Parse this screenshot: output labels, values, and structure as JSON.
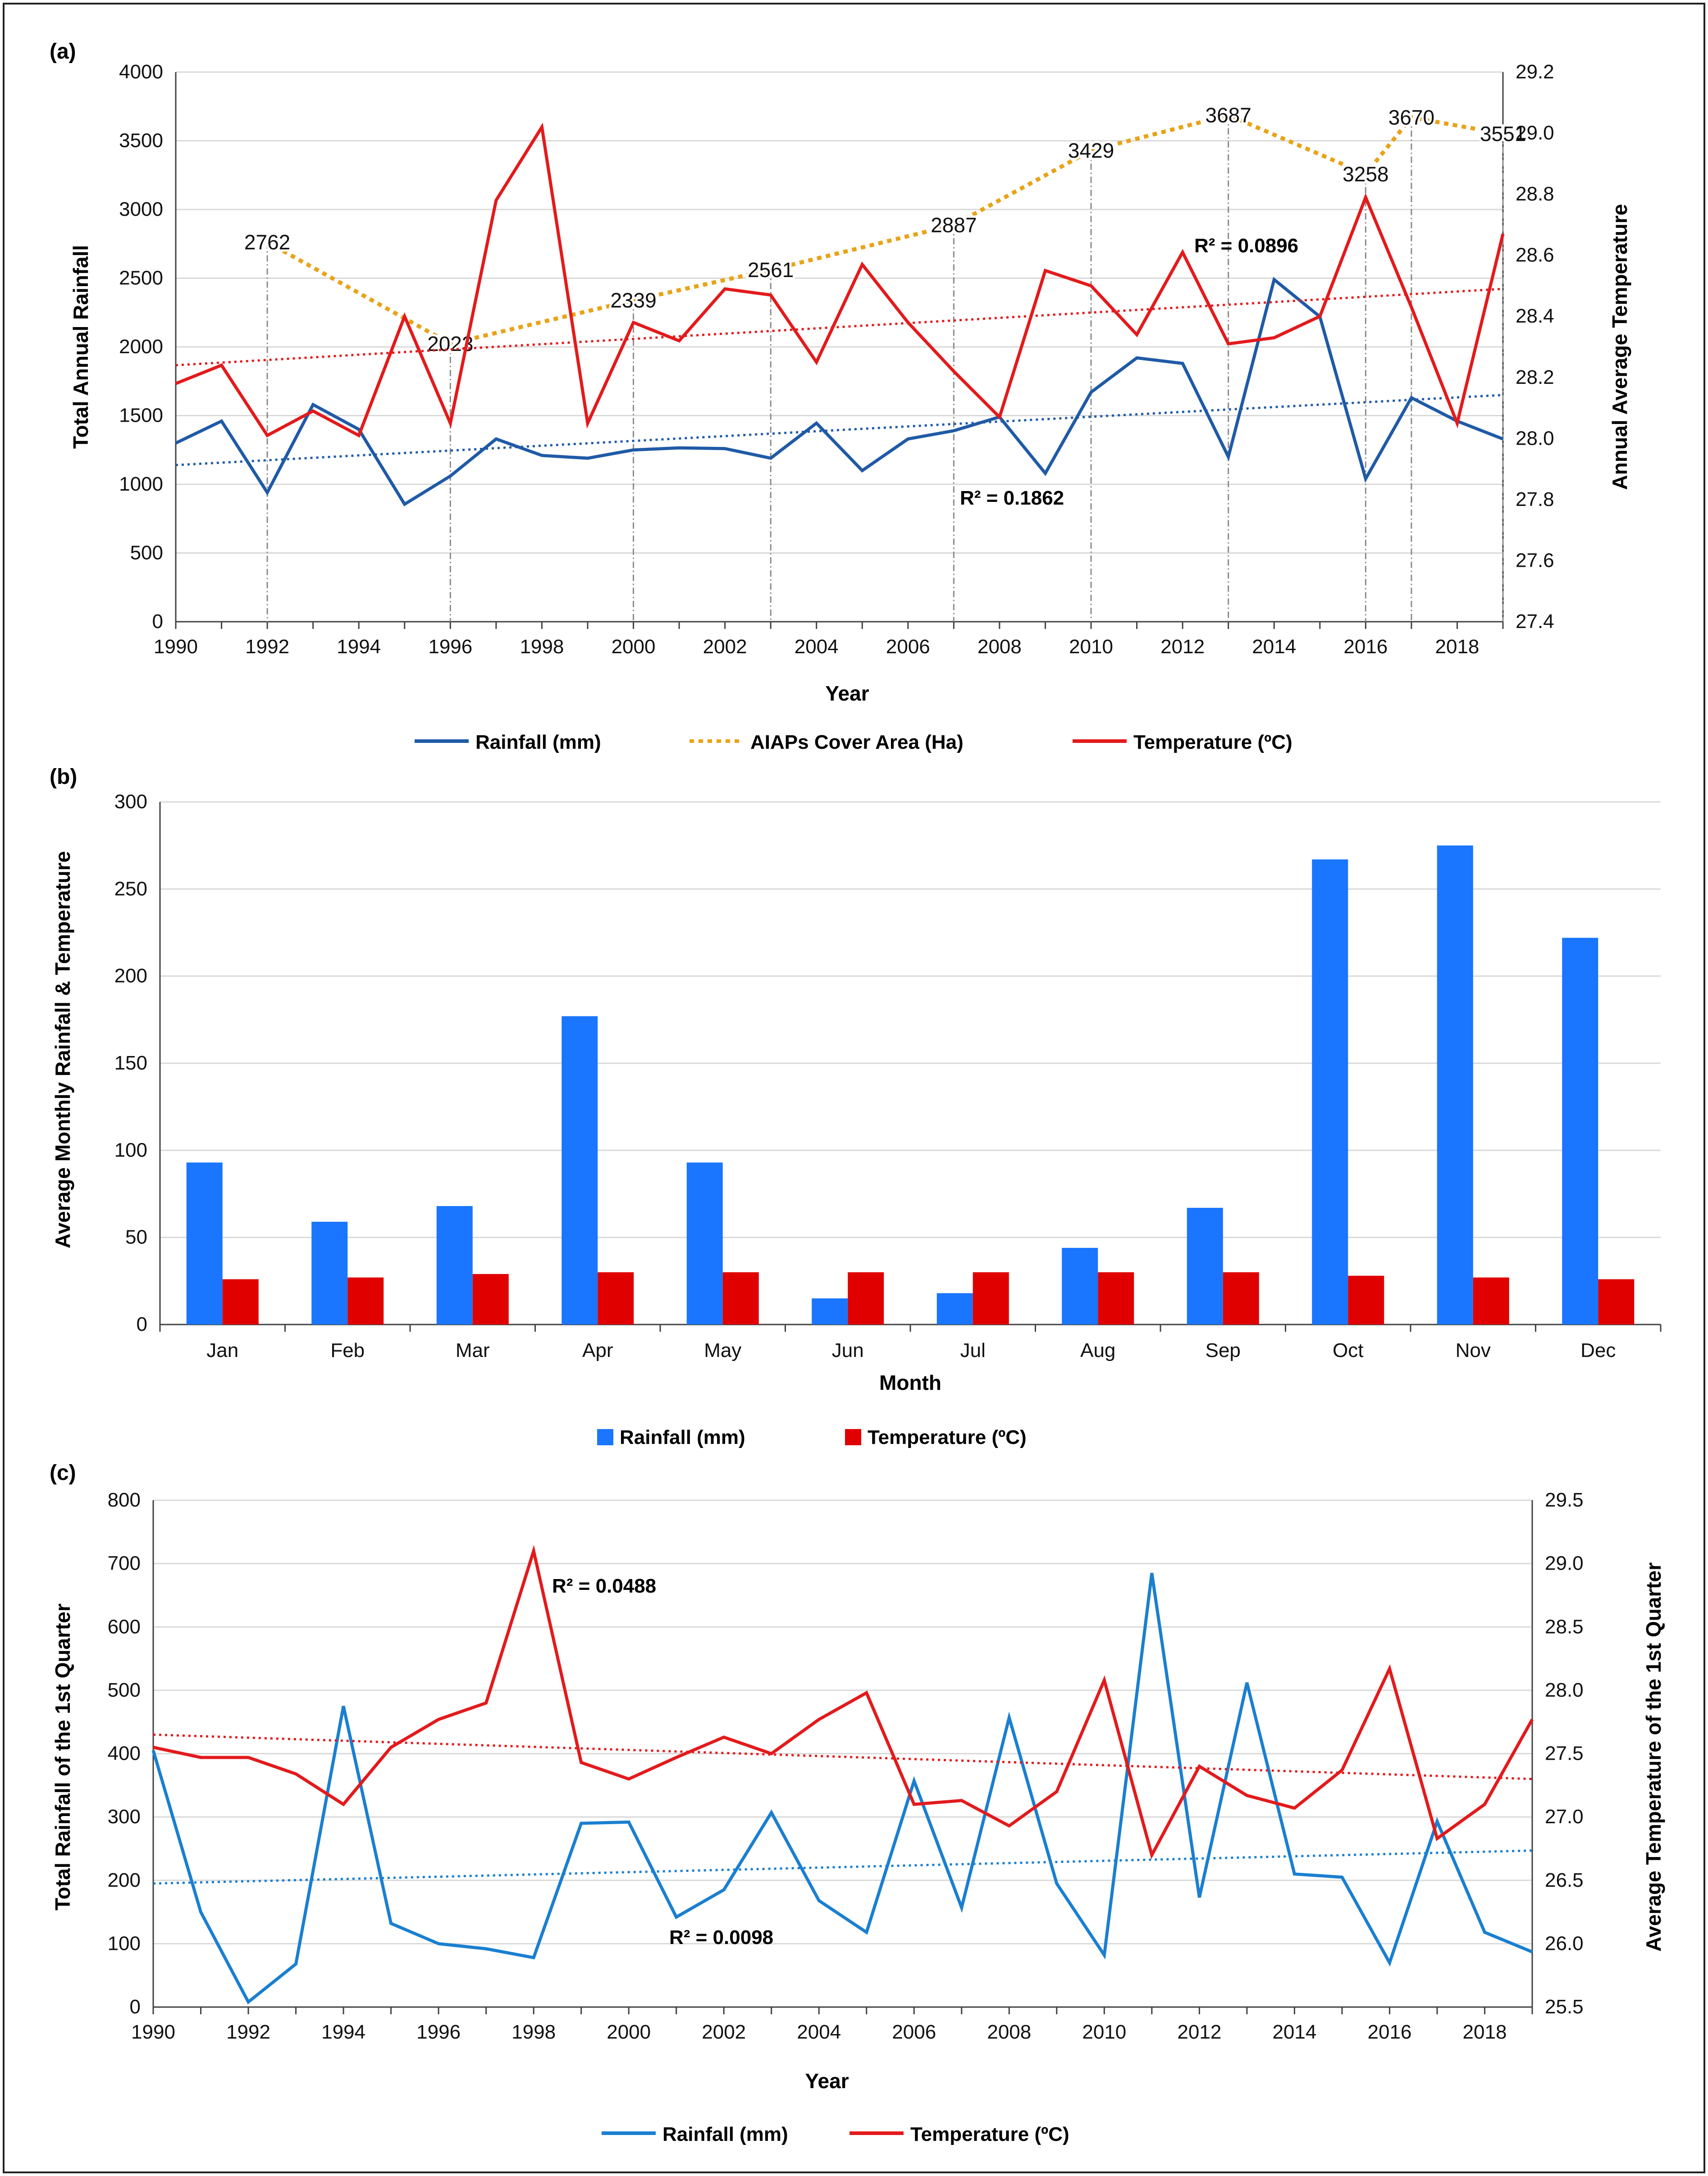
{
  "colors": {
    "rainfall_a": "#1f5aa6",
    "aiap": "#e8a317",
    "temperature": "#e31a1c",
    "rain_bar": "#1a75ff",
    "temp_bar": "#e00000",
    "rainfall_c": "#1a7fd0",
    "grid": "#d9d9d9",
    "axis": "#404040"
  },
  "chart_data": [
    {
      "panel": "(a)",
      "type": "line",
      "xlabel": "Year",
      "ylabel": "Total Annual Rainfall",
      "y2label": "Annual Average Temperature",
      "xlim": [
        1990,
        2019
      ],
      "ylim": [
        0,
        4000
      ],
      "y2lim": [
        27.4,
        29.2
      ],
      "xticks": [
        "1990",
        "1992",
        "1994",
        "1996",
        "1998",
        "2000",
        "2002",
        "2004",
        "2006",
        "2008",
        "2010",
        "2012",
        "2014",
        "2016",
        "2018"
      ],
      "yticks": [
        "0",
        "500",
        "1000",
        "1500",
        "2000",
        "2500",
        "3000",
        "3500",
        "4000"
      ],
      "y2ticks": [
        "27.4",
        "27.6",
        "27.8",
        "28.0",
        "28.2",
        "28.4",
        "28.6",
        "28.8",
        "29.0",
        "29.2"
      ],
      "x": [
        1990,
        1991,
        1992,
        1993,
        1994,
        1995,
        1996,
        1997,
        1998,
        1999,
        2000,
        2001,
        2002,
        2003,
        2004,
        2005,
        2006,
        2007,
        2008,
        2009,
        2010,
        2011,
        2012,
        2013,
        2014,
        2015,
        2016,
        2017,
        2018,
        2019
      ],
      "series": [
        {
          "name": "Rainfall (mm)",
          "axis": "left",
          "style": "solid",
          "values": [
            1300,
            1460,
            940,
            1580,
            1400,
            855,
            1060,
            1330,
            1210,
            1190,
            1250,
            1265,
            1260,
            1190,
            1445,
            1100,
            1330,
            1390,
            1490,
            1080,
            1670,
            1920,
            1880,
            1200,
            2490,
            2220,
            1040,
            1630,
            1460,
            1330
          ],
          "trend": [
            1140,
            1650
          ],
          "r2": "R² = 0.1862"
        },
        {
          "name": "AIAPs Cover Area (Ha)",
          "axis": "left",
          "style": "dotted",
          "points": [
            [
              1992,
              2762
            ],
            [
              1996,
              2023
            ],
            [
              2000,
              2339
            ],
            [
              2003,
              2561
            ],
            [
              2007,
              2887
            ],
            [
              2010,
              3429
            ],
            [
              2013,
              3687
            ],
            [
              2016,
              3258
            ],
            [
              2017,
              3670
            ],
            [
              2019,
              3551
            ]
          ],
          "labels": [
            "2762",
            "2023",
            "2339",
            "2561",
            "2887",
            "3429",
            "3687",
            "3258",
            "3670",
            "3551"
          ]
        },
        {
          "name": "Temperature (ºC)",
          "axis": "right",
          "style": "solid",
          "values": [
            28.18,
            28.24,
            28.01,
            28.09,
            28.01,
            28.4,
            28.05,
            28.78,
            29.02,
            28.05,
            28.38,
            28.32,
            28.49,
            28.47,
            28.25,
            28.57,
            28.38,
            28.22,
            28.07,
            28.55,
            28.5,
            28.34,
            28.61,
            28.31,
            28.33,
            28.4,
            28.79,
            28.43,
            28.05,
            28.67
          ],
          "trend": [
            28.24,
            28.49
          ],
          "r2": "R² = 0.0896"
        }
      ],
      "legend": [
        "Rainfall (mm)",
        "AIAPs Cover Area (Ha)",
        "Temperature (ºC)"
      ],
      "legend_position": "bottom"
    },
    {
      "panel": "(b)",
      "type": "bar",
      "xlabel": "Month",
      "ylabel": "Average Monthly Rainfall & Temperature",
      "ylim": [
        0,
        300
      ],
      "yticks": [
        "0",
        "50",
        "100",
        "150",
        "200",
        "250",
        "300"
      ],
      "categories": [
        "Jan",
        "Feb",
        "Mar",
        "Apr",
        "May",
        "Jun",
        "Jul",
        "Aug",
        "Sep",
        "Oct",
        "Nov",
        "Dec"
      ],
      "series": [
        {
          "name": "Rainfall (mm)",
          "values": [
            93,
            59,
            68,
            177,
            93,
            15,
            18,
            44,
            67,
            267,
            275,
            222
          ]
        },
        {
          "name": "Temperature (ºC)",
          "values": [
            26,
            27,
            29,
            30,
            30,
            30,
            30,
            30,
            30,
            28,
            27,
            26
          ]
        }
      ],
      "legend": [
        "Rainfall (mm)",
        "Temperature (ºC)"
      ],
      "legend_position": "bottom"
    },
    {
      "panel": "(c)",
      "type": "line",
      "xlabel": "Year",
      "ylabel": "Total Rainfall of the 1st Quarter",
      "y2label": "Average Temperature of the 1st Quarter",
      "xlim": [
        1990,
        2019
      ],
      "ylim": [
        0,
        800
      ],
      "y2lim": [
        25.5,
        29.5
      ],
      "xticks": [
        "1990",
        "1992",
        "1994",
        "1996",
        "1998",
        "2000",
        "2002",
        "2004",
        "2006",
        "2008",
        "2010",
        "2012",
        "2014",
        "2016",
        "2018"
      ],
      "yticks": [
        "0",
        "100",
        "200",
        "300",
        "400",
        "500",
        "600",
        "700",
        "800"
      ],
      "y2ticks": [
        "25.5",
        "26.0",
        "26.5",
        "27.0",
        "27.5",
        "28.0",
        "28.5",
        "29.0",
        "29.5"
      ],
      "x": [
        1990,
        1991,
        1992,
        1993,
        1994,
        1995,
        1996,
        1997,
        1998,
        1999,
        2000,
        2001,
        2002,
        2003,
        2004,
        2005,
        2006,
        2007,
        2008,
        2009,
        2010,
        2011,
        2012,
        2013,
        2014,
        2015,
        2016,
        2017,
        2018,
        2019
      ],
      "series": [
        {
          "name": "Rainfall (mm)",
          "axis": "left",
          "values": [
            405,
            150,
            8,
            68,
            475,
            132,
            100,
            92,
            78,
            290,
            292,
            142,
            185,
            307,
            168,
            118,
            357,
            157,
            457,
            195,
            82,
            685,
            173,
            512,
            210,
            205,
            70,
            293,
            118,
            87
          ],
          "trend": [
            195,
            247
          ],
          "r2": "R² = 0.0098"
        },
        {
          "name": "Temperature (ºC)",
          "axis": "right",
          "values": [
            27.55,
            27.47,
            27.47,
            27.34,
            27.1,
            27.55,
            27.77,
            27.9,
            29.1,
            27.43,
            27.3,
            27.47,
            27.63,
            27.5,
            27.77,
            27.98,
            27.1,
            27.13,
            26.93,
            27.2,
            28.08,
            26.7,
            27.4,
            27.17,
            27.07,
            27.37,
            28.17,
            26.83,
            27.1,
            27.77
          ],
          "trend": [
            27.65,
            27.3
          ],
          "r2": "R² = 0.0488"
        }
      ],
      "legend": [
        "Rainfall (mm)",
        "Temperature (ºC)"
      ],
      "legend_position": "bottom"
    }
  ]
}
